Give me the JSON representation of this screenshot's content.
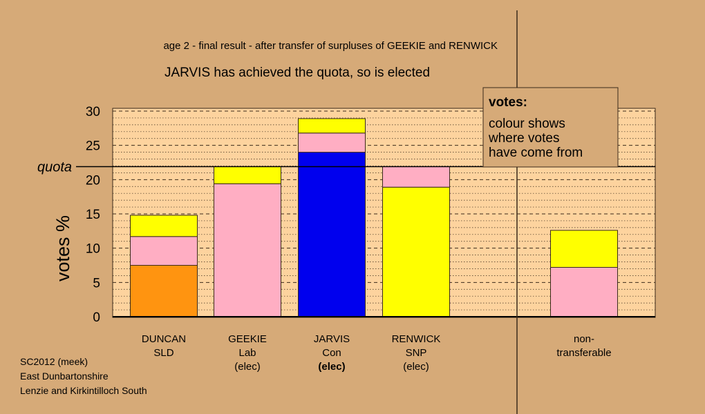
{
  "chart_data": {
    "type": "bar",
    "stacked": true,
    "title": "age 2 - final result - after transfer of surpluses of GEEKIE and RENWICK",
    "subtitle": "JARVIS has achieved the quota, so is elected",
    "ylabel": "votes %",
    "ylim": [
      0,
      30
    ],
    "yticks": [
      0,
      5,
      10,
      15,
      20,
      25,
      30
    ],
    "quota": 21.9,
    "quota_label": "quota",
    "grid": true,
    "colors": {
      "background": "#d6aa78",
      "plot_area": "#fdd39e",
      "orange": "#ff9410",
      "pink": "#ffaec3",
      "yellow": "#ffff00",
      "blue": "#0000ee"
    },
    "bars": [
      {
        "label_lines": [
          "DUNCAN",
          "SLD",
          ""
        ],
        "segments": [
          {
            "value": 7.5,
            "color": "#ff9410"
          },
          {
            "value": 4.2,
            "color": "#ffaec3"
          },
          {
            "value": 3.1,
            "color": "#ffff00"
          }
        ]
      },
      {
        "label_lines": [
          "GEEKIE",
          "Lab",
          "(elec)"
        ],
        "segments": [
          {
            "value": 19.4,
            "color": "#ffaec3"
          },
          {
            "value": 2.5,
            "color": "#ffff00"
          }
        ]
      },
      {
        "label_lines": [
          "JARVIS",
          "Con",
          "(elec)"
        ],
        "bold_last": true,
        "segments": [
          {
            "value": 24.0,
            "color": "#0000ee"
          },
          {
            "value": 2.8,
            "color": "#ffaec3"
          },
          {
            "value": 2.1,
            "color": "#ffff00"
          }
        ]
      },
      {
        "label_lines": [
          "RENWICK",
          "SNP",
          "(elec)"
        ],
        "segments": [
          {
            "value": 18.9,
            "color": "#ffff00"
          },
          {
            "value": 3.0,
            "color": "#ffaec3"
          }
        ]
      },
      {
        "label_lines": [
          "non-",
          "transferable",
          ""
        ],
        "separate": true,
        "segments": [
          {
            "value": 7.2,
            "color": "#ffaec3"
          },
          {
            "value": 5.4,
            "color": "#ffff00"
          }
        ]
      }
    ],
    "legend": {
      "heading": "votes:",
      "lines": [
        "colour shows",
        "where votes",
        "have come from"
      ]
    }
  },
  "footer": {
    "lines": [
      "SC2012 (meek)",
      "East Dunbartonshire",
      "Lenzie and Kirkintilloch South"
    ]
  }
}
